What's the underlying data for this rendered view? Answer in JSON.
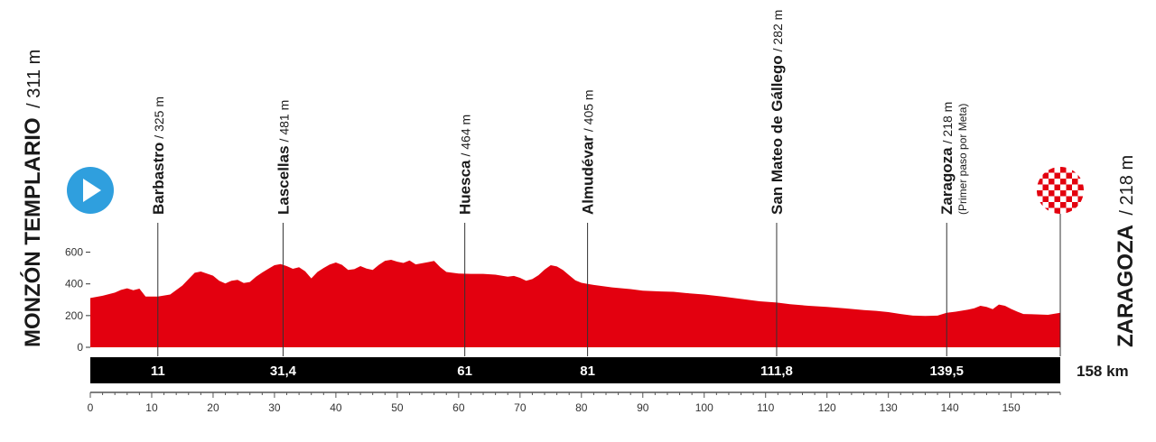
{
  "chart_data": {
    "type": "area",
    "total_km": "158 km",
    "xlim": [
      0,
      158
    ],
    "ylim": [
      0,
      700
    ],
    "y_ticks": [
      0,
      200,
      400,
      600
    ],
    "x_ticks": [
      0,
      10,
      20,
      30,
      40,
      50,
      60,
      70,
      80,
      90,
      100,
      110,
      120,
      130,
      140,
      150
    ],
    "start": {
      "name": "MONZÓN TEMPLARIO",
      "altitude": "/ 311 m"
    },
    "finish": {
      "name": "ZARAGOZA",
      "altitude": "/ 218 m"
    },
    "waypoints": [
      {
        "km": 11,
        "km_label": "11",
        "name": "Barbastro",
        "altitude": "/ 325 m",
        "note": ""
      },
      {
        "km": 31.4,
        "km_label": "31,4",
        "name": "Lascellas",
        "altitude": "/ 481 m",
        "note": ""
      },
      {
        "km": 61,
        "km_label": "61",
        "name": "Huesca",
        "altitude": "/ 464 m",
        "note": ""
      },
      {
        "km": 81,
        "km_label": "81",
        "name": "Almudévar",
        "altitude": "/ 405 m",
        "note": ""
      },
      {
        "km": 111.8,
        "km_label": "111,8",
        "name": "San Mateo de Gállego",
        "altitude": "/ 282 m",
        "note": ""
      },
      {
        "km": 139.5,
        "km_label": "139,5",
        "name": "Zaragoza",
        "altitude": "/ 218 m",
        "note": "(Primer paso por Meta)"
      }
    ],
    "profile": [
      [
        0,
        311
      ],
      [
        2,
        325
      ],
      [
        4,
        345
      ],
      [
        5,
        362
      ],
      [
        6,
        372
      ],
      [
        7,
        360
      ],
      [
        8,
        370
      ],
      [
        9,
        320
      ],
      [
        11,
        320
      ],
      [
        13,
        333
      ],
      [
        15,
        390
      ],
      [
        16,
        430
      ],
      [
        17,
        470
      ],
      [
        18,
        478
      ],
      [
        20,
        452
      ],
      [
        21,
        420
      ],
      [
        22,
        403
      ],
      [
        23,
        420
      ],
      [
        24,
        425
      ],
      [
        25,
        405
      ],
      [
        26,
        412
      ],
      [
        27,
        445
      ],
      [
        28,
        472
      ],
      [
        29,
        495
      ],
      [
        30,
        518
      ],
      [
        31,
        525
      ],
      [
        32,
        512
      ],
      [
        33,
        495
      ],
      [
        34,
        505
      ],
      [
        35,
        480
      ],
      [
        36,
        435
      ],
      [
        37,
        475
      ],
      [
        38,
        500
      ],
      [
        39,
        522
      ],
      [
        40,
        535
      ],
      [
        41,
        520
      ],
      [
        42,
        488
      ],
      [
        43,
        493
      ],
      [
        44,
        512
      ],
      [
        45,
        497
      ],
      [
        46,
        488
      ],
      [
        47,
        520
      ],
      [
        48,
        546
      ],
      [
        49,
        552
      ],
      [
        50,
        540
      ],
      [
        51,
        532
      ],
      [
        52,
        548
      ],
      [
        53,
        523
      ],
      [
        54,
        530
      ],
      [
        55,
        537
      ],
      [
        56,
        545
      ],
      [
        57,
        505
      ],
      [
        58,
        475
      ],
      [
        60,
        465
      ],
      [
        62,
        463
      ],
      [
        64,
        463
      ],
      [
        66,
        458
      ],
      [
        68,
        445
      ],
      [
        69,
        450
      ],
      [
        70,
        438
      ],
      [
        71,
        420
      ],
      [
        72,
        430
      ],
      [
        73,
        455
      ],
      [
        74,
        490
      ],
      [
        75,
        518
      ],
      [
        76,
        510
      ],
      [
        77,
        487
      ],
      [
        78,
        455
      ],
      [
        79,
        423
      ],
      [
        80,
        407
      ],
      [
        81,
        400
      ],
      [
        82,
        393
      ],
      [
        85,
        378
      ],
      [
        88,
        367
      ],
      [
        90,
        357
      ],
      [
        93,
        352
      ],
      [
        95,
        350
      ],
      [
        97,
        342
      ],
      [
        100,
        333
      ],
      [
        103,
        320
      ],
      [
        106,
        305
      ],
      [
        109,
        290
      ],
      [
        111.8,
        282
      ],
      [
        114,
        272
      ],
      [
        117,
        262
      ],
      [
        120,
        255
      ],
      [
        123,
        245
      ],
      [
        126,
        235
      ],
      [
        128,
        230
      ],
      [
        130,
        222
      ],
      [
        132,
        210
      ],
      [
        134,
        200
      ],
      [
        136,
        198
      ],
      [
        138,
        200
      ],
      [
        139.5,
        218
      ],
      [
        141,
        225
      ],
      [
        143,
        238
      ],
      [
        144,
        246
      ],
      [
        145,
        262
      ],
      [
        146,
        255
      ],
      [
        147,
        240
      ],
      [
        148,
        270
      ],
      [
        149,
        262
      ],
      [
        150,
        242
      ],
      [
        151,
        225
      ],
      [
        152,
        210
      ],
      [
        154,
        208
      ],
      [
        156,
        205
      ],
      [
        158,
        218
      ]
    ]
  },
  "colors": {
    "profile": "#e3000f",
    "bar": "#000000",
    "start_icon": "#2f9fde",
    "finish_icon": "#e3000f"
  }
}
